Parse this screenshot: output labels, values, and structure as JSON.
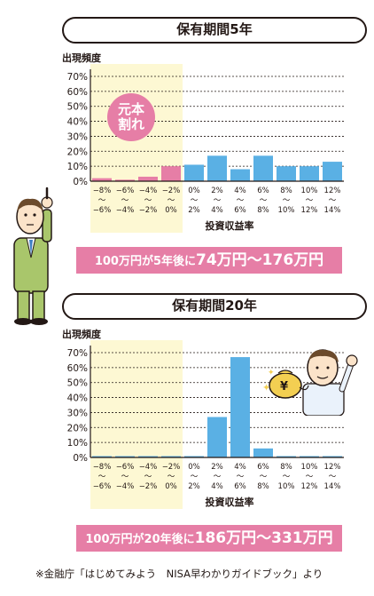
{
  "charts": [
    {
      "title": "保有期間5年",
      "ylabel": "出現頻度",
      "xlabel": "投資収益率",
      "result": {
        "prefix": "100万円が5年後に",
        "amount": "74万円〜176万円"
      },
      "bubble": "元本割れ",
      "bubble_lines": [
        "元本",
        "割れ"
      ]
    },
    {
      "title": "保有期間20年",
      "ylabel": "出現頻度",
      "xlabel": "投資収益率",
      "result": {
        "prefix": "100万円が20年後に",
        "amount": "186万円〜331万円"
      }
    }
  ],
  "chart_data": [
    {
      "type": "bar",
      "title": "保有期間5年",
      "ylabel": "出現頻度",
      "xlabel": "投資収益率",
      "ylim": [
        0,
        70
      ],
      "yticks": [
        "0%",
        "10%",
        "20%",
        "30%",
        "40%",
        "50%",
        "60%",
        "70%"
      ],
      "categories": [
        "−8%〜−6%",
        "−6%〜−4%",
        "−4%〜−2%",
        "−2%〜0%",
        "0%〜2%",
        "2%〜4%",
        "4%〜6%",
        "6%〜8%",
        "8%〜10%",
        "10%〜12%",
        "12%〜14%"
      ],
      "cat_top": [
        "−8%",
        "−6%",
        "−4%",
        "−2%",
        "0%",
        "2%",
        "4%",
        "6%",
        "8%",
        "10%",
        "12%"
      ],
      "cat_bottom": [
        "−6%",
        "−4%",
        "−2%",
        "0%",
        "2%",
        "4%",
        "6%",
        "8%",
        "10%",
        "12%",
        "14%"
      ],
      "values": [
        2,
        1,
        3,
        10,
        11,
        17,
        8,
        17,
        10,
        10,
        13
      ],
      "colors": [
        "#e67ea6",
        "#e67ea6",
        "#e67ea6",
        "#e67ea6",
        "#5ab0e4",
        "#5ab0e4",
        "#5ab0e4",
        "#5ab0e4",
        "#5ab0e4",
        "#5ab0e4",
        "#5ab0e4"
      ],
      "grid": true
    },
    {
      "type": "bar",
      "title": "保有期間20年",
      "ylabel": "出現頻度",
      "xlabel": "投資収益率",
      "ylim": [
        0,
        70
      ],
      "yticks": [
        "0%",
        "10%",
        "20%",
        "30%",
        "40%",
        "50%",
        "60%",
        "70%"
      ],
      "categories": [
        "−8%〜−6%",
        "−6%〜−4%",
        "−4%〜−2%",
        "−2%〜0%",
        "0%〜2%",
        "2%〜4%",
        "4%〜6%",
        "6%〜8%",
        "8%〜10%",
        "10%〜12%",
        "12%〜14%"
      ],
      "cat_top": [
        "−8%",
        "−6%",
        "−4%",
        "−2%",
        "0%",
        "2%",
        "4%",
        "6%",
        "8%",
        "10%",
        "12%"
      ],
      "cat_bottom": [
        "−6%",
        "−4%",
        "−2%",
        "0%",
        "2%",
        "4%",
        "6%",
        "8%",
        "10%",
        "12%",
        "14%"
      ],
      "values": [
        0,
        0,
        0,
        0,
        0,
        27,
        67,
        6,
        0,
        0,
        0
      ],
      "colors": [
        "#5ab0e4",
        "#5ab0e4",
        "#5ab0e4",
        "#5ab0e4",
        "#5ab0e4",
        "#5ab0e4",
        "#5ab0e4",
        "#5ab0e4",
        "#5ab0e4",
        "#5ab0e4",
        "#5ab0e4"
      ],
      "grid": true
    }
  ],
  "colors": {
    "negative": "#e67ea6",
    "positive": "#5ab0e4",
    "shade": "#fdf8d3",
    "result_bg": "#e67ea6"
  },
  "source": "※金融庁「はじめてみよう　NISA早わかりガイドブック」より"
}
